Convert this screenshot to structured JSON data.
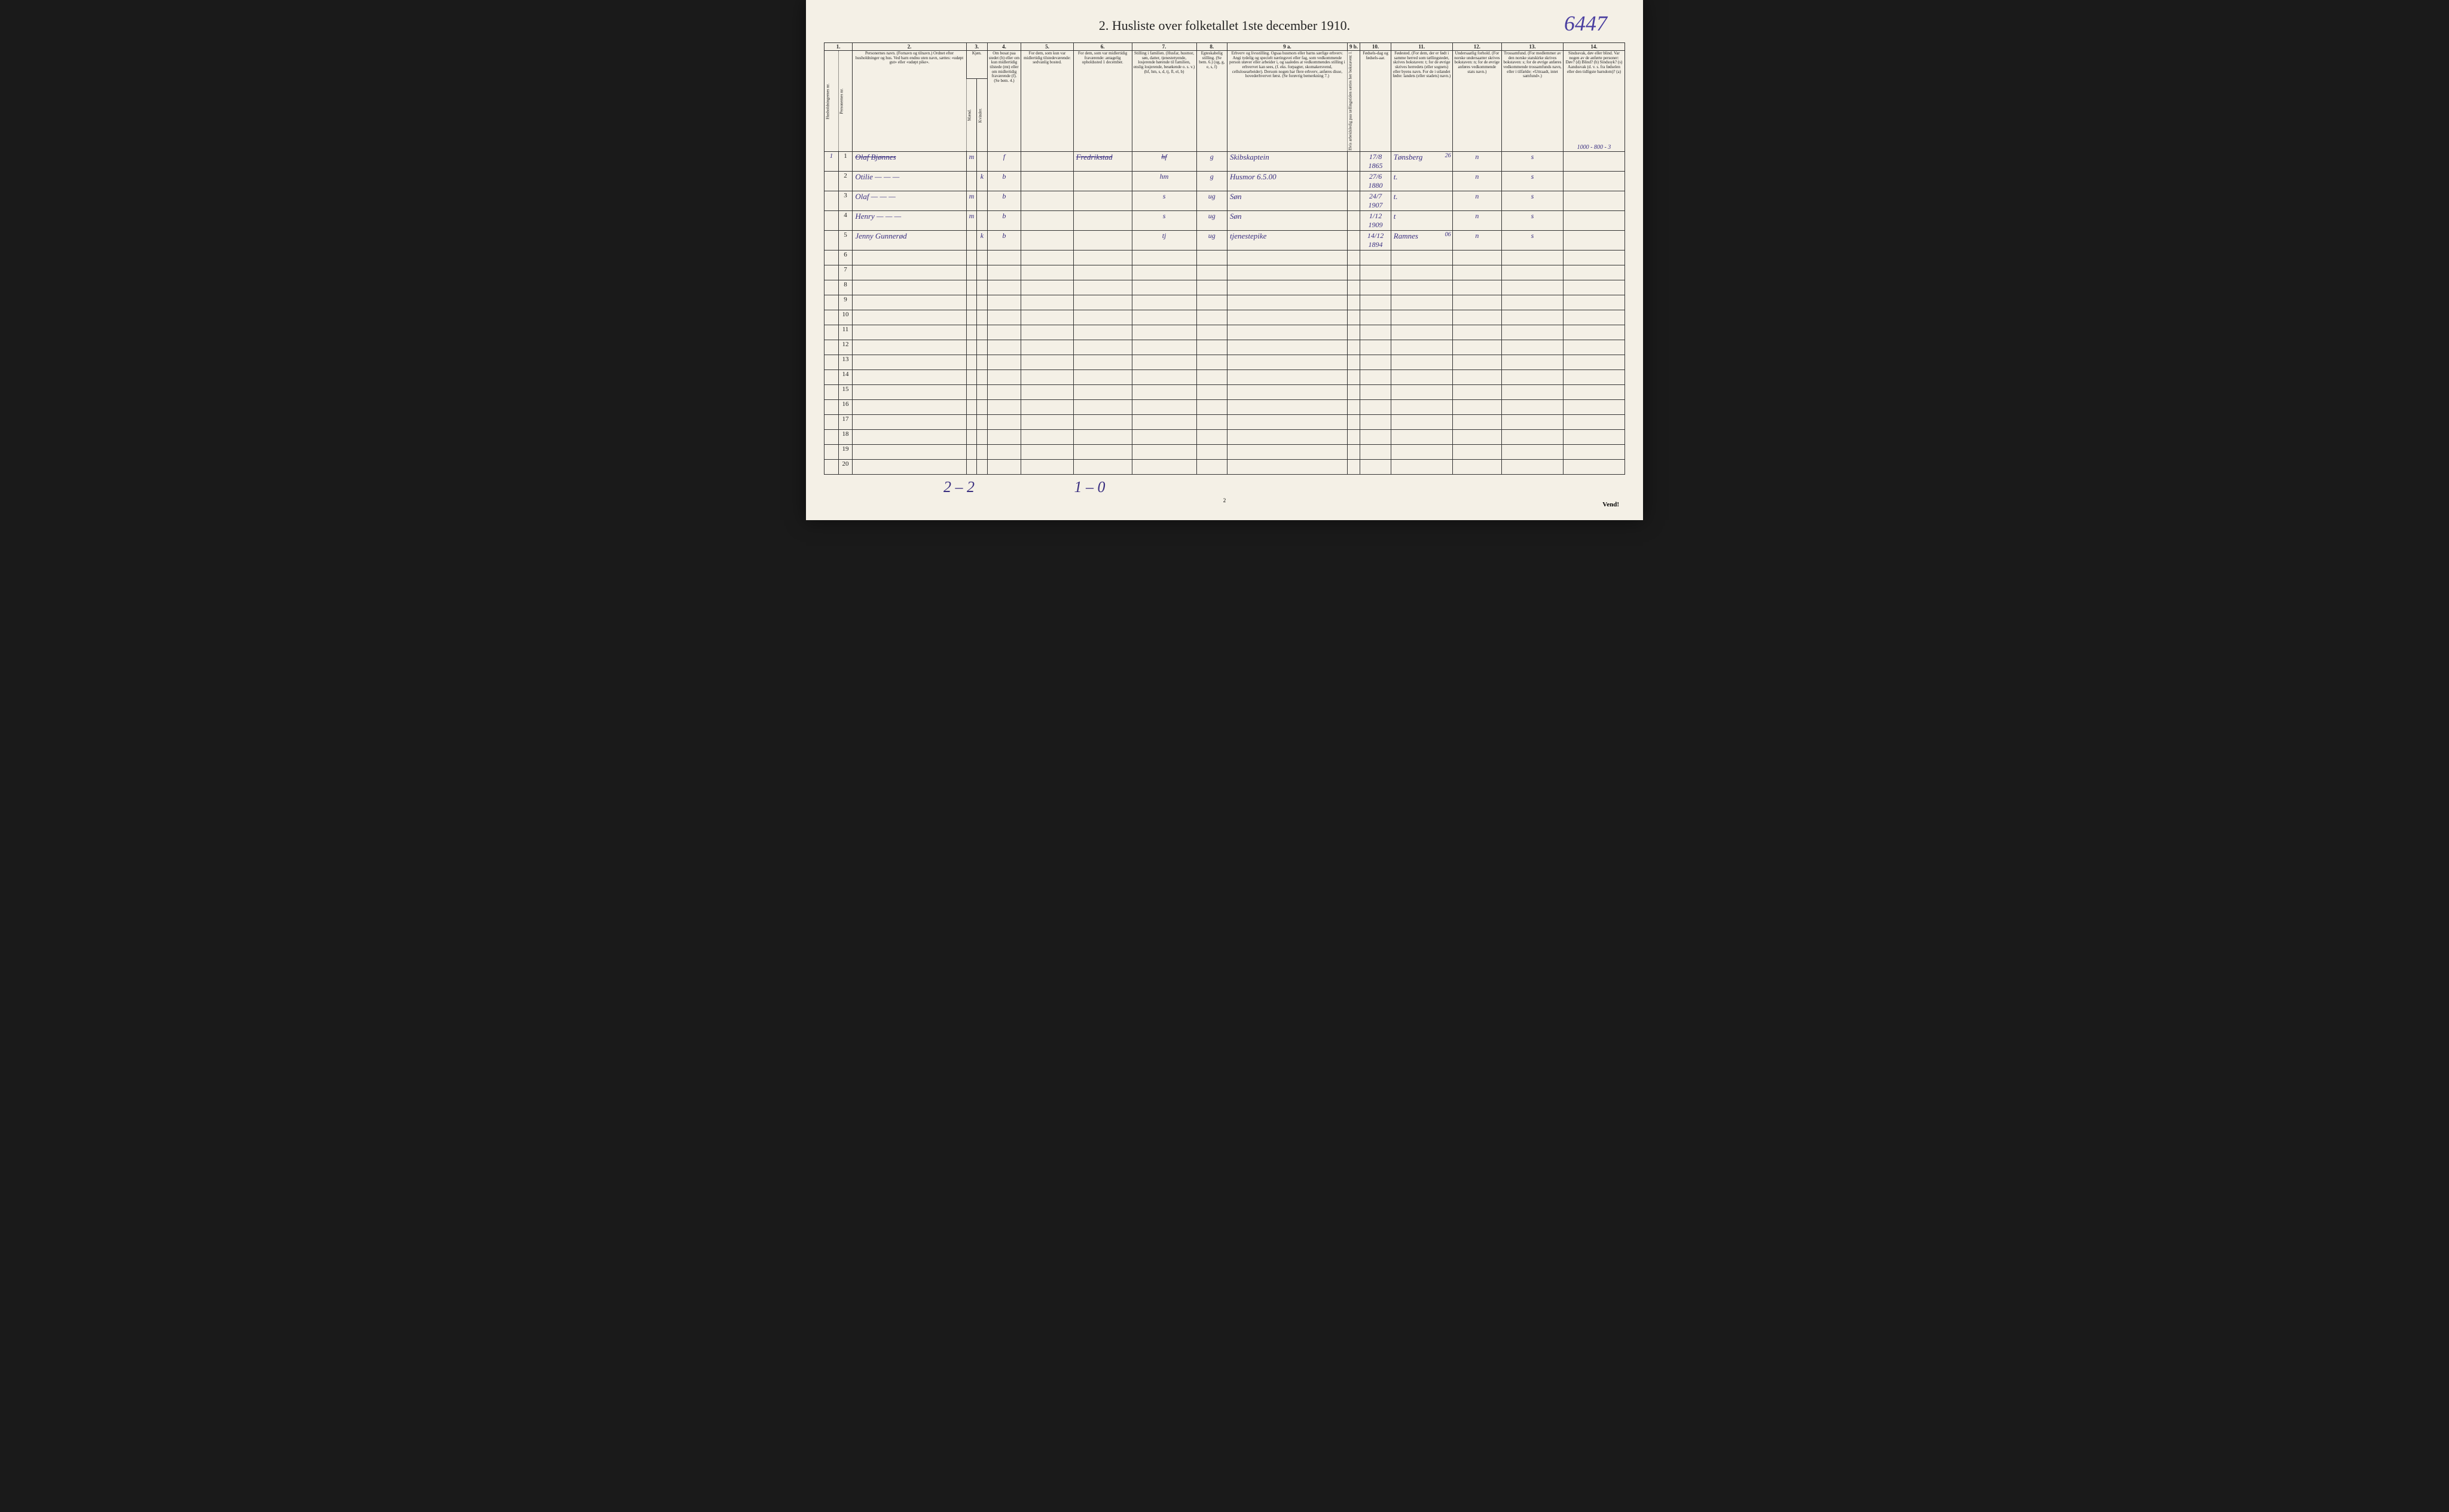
{
  "title": "2.  Husliste over folketallet 1ste december 1910.",
  "top_handwritten": "6447",
  "columns": {
    "c1": "1.",
    "c2": "2.",
    "c3": "3.",
    "c4": "4.",
    "c5": "5.",
    "c6": "6.",
    "c7": "7.",
    "c8": "8.",
    "c9a": "9 a.",
    "c9b": "9 b.",
    "c10": "10.",
    "c11": "11.",
    "c12": "12.",
    "c13": "13.",
    "c14": "14."
  },
  "headers": {
    "h1a": "Husholdningernes nr.",
    "h1b": "Personernes nr.",
    "h2": "Personernes navn.\n(Fornavn og tilnavn.)\nOrdnet efter husholdninger og hus.\nVed barn endnu uten navn, sættes: «udøpt gut» eller «udøpt pike».",
    "h3": "Kjøn.",
    "h3m": "Mænd.",
    "h3k": "Kvinder.",
    "h3mk": "m.  k.",
    "h4": "Om bosat paa stedet (b) eller om kun midlertidig tilstede (mt) eller om midlertidig fraværende (f).\n(Se bem. 4.)",
    "h5": "For dem, som kun var midlertidig tilstedeværende:\nsedvanlig bosted.",
    "h6": "For dem, som var midlertidig fraværende:\nantagelig opholdssted 1 december.",
    "h7": "Stilling i familien.\n(Husfar, husmor, søn, datter, tjenestetyende, losjerende hørende til familien, enslig losjerende, besøkende o. s. v.)\n(hf, hm, s, d, tj, fl, el, b)",
    "h8": "Egteskabelig stilling.\n(Se bem. 6.)\n(ug, g, e, s, f)",
    "h9a": "Erhverv og livsstilling.\nOgsaa husmors eller barns særlige erhverv.\nAngi tydelig og specielt næringsvei eller fag, som vedkommende person utøver eller arbeider i, og saaledes at vedkommendes stilling i erhvervet kan sees, (f. eks. forpagter, skomakersvend, cellulosearbeider). Dersom nogen har flere erhverv, anføres disse, hovederhvervet først.\n(Se forøvrig bemerkning 7.)",
    "h9b": "Hvis arbeidsledig paa tællingstiden sættes her bokstaven: l.",
    "h10": "Fødsels-dag og fødsels-aar.",
    "h11": "Fødested.\n(For dem, der er født i samme herred som tællingstedet, skrives bokstaven: t; for de øvrige skrives herredets (eller sognets) eller byens navn. For de i utlandet fødte: landets (eller stadets) navn.)",
    "h12": "Undersaatlig forhold.\n(For norske undersaatter skrives bokstaven: n; for de øvrige anføres vedkommende stats navn.)",
    "h13": "Trossamfund.\n(For medlemmer av den norske statskirke skrives bokstaven: s; for de øvrige anføres vedkommende trossamfunds navn, eller i tilfælde: «Uttraadt, intet samfund».)",
    "h14": "Sindssvak, døv eller blind.\nVar nogen av de anførte personer:\nDøv?        (d)\nBlind?       (b)\nSindssyk?  (s)\nAandssvak (d. v. s. fra fødselen eller den tidligste barndom)? (a)"
  },
  "top_right_annot": "1000 - 800 - 3",
  "col11_annot_26": "26",
  "col11_annot_06": "06",
  "rows": [
    {
      "hh": "1",
      "pn": "1",
      "name": "Olaf Bjønnes",
      "m": "m",
      "k": "",
      "bf": "f",
      "c5": "",
      "c6": "Fredrikstad",
      "c7": "hf",
      "c8": "g",
      "c9a": "Skibskaptein",
      "c9b": "",
      "c10": "17/8 1865",
      "c11": "Tønsberg",
      "c12": "n",
      "c13": "s",
      "c14": "",
      "strike": true
    },
    {
      "hh": "",
      "pn": "2",
      "name": "Otilie    —  —  —",
      "m": "",
      "k": "k",
      "bf": "b",
      "c5": "",
      "c6": "",
      "c7": "hm",
      "c8": "g",
      "c9a": "Husmor 6.5.00",
      "c9b": "",
      "c10": "27/6 1880",
      "c11": "t.",
      "c12": "n",
      "c13": "s",
      "c14": ""
    },
    {
      "hh": "",
      "pn": "3",
      "name": "Olaf      —  —  —",
      "m": "m",
      "k": "",
      "bf": "b",
      "c5": "",
      "c6": "",
      "c7": "s",
      "c8": "ug",
      "c9a": "Søn",
      "c9b": "",
      "c10": "24/7 1907",
      "c11": "t.",
      "c12": "n",
      "c13": "s",
      "c14": ""
    },
    {
      "hh": "",
      "pn": "4",
      "name": "Henry   —  —  —",
      "m": "m",
      "k": "",
      "bf": "b",
      "c5": "",
      "c6": "",
      "c7": "s",
      "c8": "ug",
      "c9a": "Søn",
      "c9b": "",
      "c10": "1/12 1909",
      "c11": "t",
      "c12": "n",
      "c13": "s",
      "c14": ""
    },
    {
      "hh": "",
      "pn": "5",
      "name": "Jenny Gunnerød",
      "m": "",
      "k": "k",
      "bf": "b",
      "c5": "",
      "c6": "",
      "c7": "tj",
      "c8": "ug",
      "c9a": "tjenestepike",
      "c9b": "",
      "c10": "14/12 1894",
      "c11": "Ramnes",
      "c12": "n",
      "c13": "s",
      "c14": ""
    }
  ],
  "empty_rows": [
    "6",
    "7",
    "8",
    "9",
    "10",
    "11",
    "12",
    "13",
    "14",
    "15",
    "16",
    "17",
    "18",
    "19",
    "20"
  ],
  "bottom_hw_1": "2 – 2",
  "bottom_hw_2": "1 – 0",
  "page_num_bottom": "2",
  "vend": "Vend!"
}
